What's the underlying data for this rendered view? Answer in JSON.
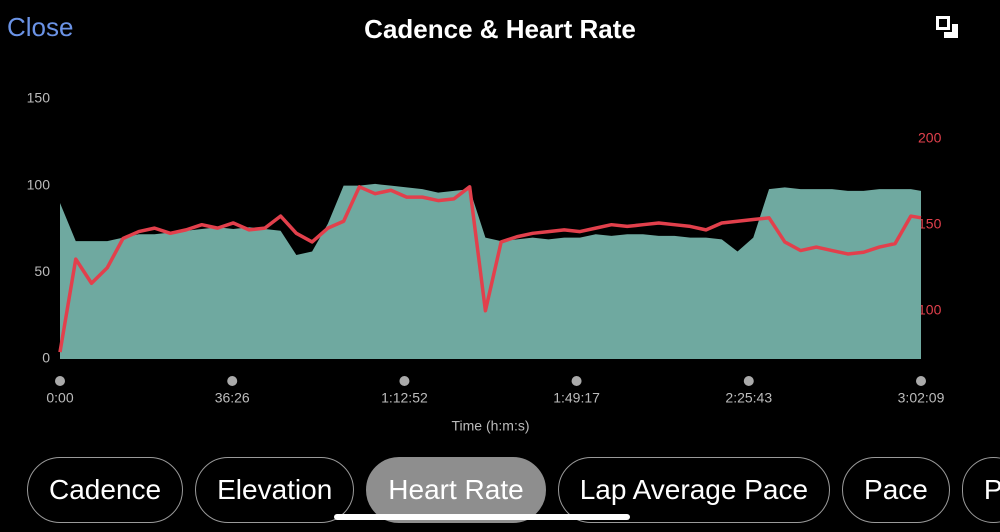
{
  "header": {
    "close": "Close",
    "title": "Cadence & Heart Rate"
  },
  "chart_data": {
    "type": "area_line",
    "xlabel": "Time (h:m:s)",
    "x": [
      0,
      200,
      400,
      600,
      800,
      1000,
      1200,
      1400,
      1600,
      1800,
      2000,
      2200,
      2400,
      2600,
      2800,
      3000,
      3200,
      3400,
      3600,
      3800,
      4000,
      4200,
      4400,
      4600,
      4800,
      5000,
      5200,
      5400,
      5600,
      5800,
      6000,
      6200,
      6400,
      6600,
      6800,
      7000,
      7200,
      7400,
      7600,
      7800,
      8000,
      8200,
      8400,
      8600,
      8800,
      9000,
      9200,
      9400,
      9600,
      9800,
      10000,
      10200,
      10400,
      10600,
      10800,
      10929
    ],
    "xlim": [
      0,
      10929
    ],
    "xticks": [
      {
        "value": 0,
        "label": "0:00"
      },
      {
        "value": 2186,
        "label": "36:26"
      },
      {
        "value": 4372,
        "label": "1:12:52"
      },
      {
        "value": 6557,
        "label": "1:49:17"
      },
      {
        "value": 8743,
        "label": "2:25:43"
      },
      {
        "value": 10929,
        "label": "3:02:09"
      }
    ],
    "ylim": [
      0,
      150
    ],
    "yticks": [
      0,
      50,
      100,
      150
    ],
    "y2lim": [
      72,
      223
    ],
    "y2ticks": [
      100,
      150,
      200
    ],
    "series": [
      {
        "type": "area",
        "color": "#6fa9a0",
        "values": [
          90,
          68,
          68,
          68,
          70,
          72,
          72,
          73,
          74,
          75,
          76,
          75,
          76,
          75,
          74,
          60,
          62,
          78,
          100,
          100,
          101,
          100,
          99,
          98,
          96,
          97,
          98,
          70,
          68,
          69,
          70,
          69,
          70,
          70,
          72,
          71,
          72,
          72,
          71,
          71,
          70,
          70,
          69,
          62,
          70,
          98,
          99,
          98,
          98,
          98,
          97,
          97,
          98,
          98,
          98,
          97
        ]
      },
      {
        "type": "line",
        "axis": "y2",
        "color": "#e2404c",
        "values": [
          76,
          130,
          116,
          125,
          142,
          146,
          148,
          145,
          147,
          150,
          148,
          151,
          147,
          148,
          155,
          145,
          140,
          148,
          152,
          172,
          168,
          170,
          166,
          166,
          164,
          165,
          172,
          100,
          140,
          143,
          145,
          146,
          147,
          146,
          148,
          150,
          149,
          150,
          151,
          150,
          149,
          147,
          151,
          152,
          153,
          154,
          140,
          135,
          137,
          135,
          133,
          134,
          137,
          139,
          155,
          154
        ]
      }
    ]
  },
  "tabs": {
    "items": [
      "Cadence",
      "Elevation",
      "Heart Rate",
      "Lap Average Pace",
      "Pace",
      "P"
    ],
    "selected": 2
  }
}
